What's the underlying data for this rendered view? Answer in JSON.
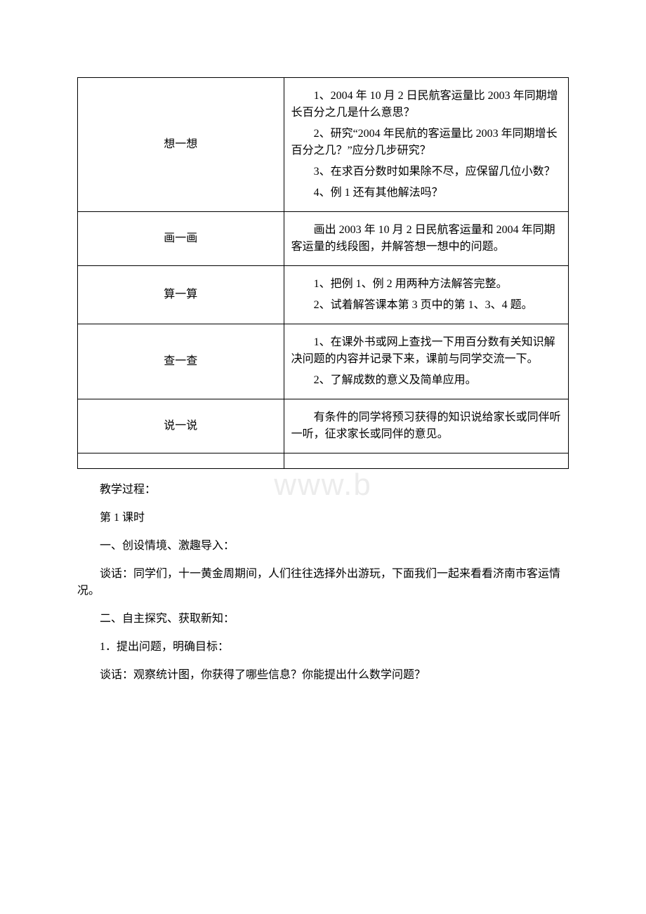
{
  "watermark": "www.b",
  "table": {
    "rows": [
      {
        "label": "想一想",
        "items": [
          "1、2004 年 10 月 2 日民航客运量比 2003 年同期增长百分之几是什么意思？",
          "2、研究“2004 年民航的客运量比 2003 年同期增长百分之几？”应分几步研究？",
          "3、在求百分数时如果除不尽，应保留几位小数？",
          "4、例 1 还有其他解法吗？"
        ]
      },
      {
        "label": "画一画",
        "items": [
          "画出 2003 年 10 月 2 日民航客运量和 2004 年同期客运量的线段图，并解答想一想中的问题。"
        ]
      },
      {
        "label": "算一算",
        "items": [
          "1、把例 1、例 2 用两种方法解答完整。",
          "2、试着解答课本第 3 页中的第 1、3、4 题。"
        ],
        "flush_second": true
      },
      {
        "label": "查一查",
        "items": [
          "1、在课外书或网上查找一下用百分数有关知识解决问题的内容并记录下来，课前与同学交流一下。",
          "2、了解成数的意义及简单应用。"
        ],
        "flush_second": true
      },
      {
        "label": "说一说",
        "items": [
          "有条件的同学将预习获得的知识说给家长或同伴听一听，征求家长或同伴的意见。"
        ]
      }
    ]
  },
  "body_paragraphs": [
    "教学过程：",
    "第 1 课时",
    "一、创设情境、激趣导入：",
    "谈话：同学们，十一黄金周期间，人们往往选择外出游玩，下面我们一起来看看济南市客运情况。",
    "二、自主探究、获取新知：",
    "1．提出问题，明确目标：",
    "谈话：观察统计图，你获得了哪些信息？你能提出什么数学问题？"
  ]
}
